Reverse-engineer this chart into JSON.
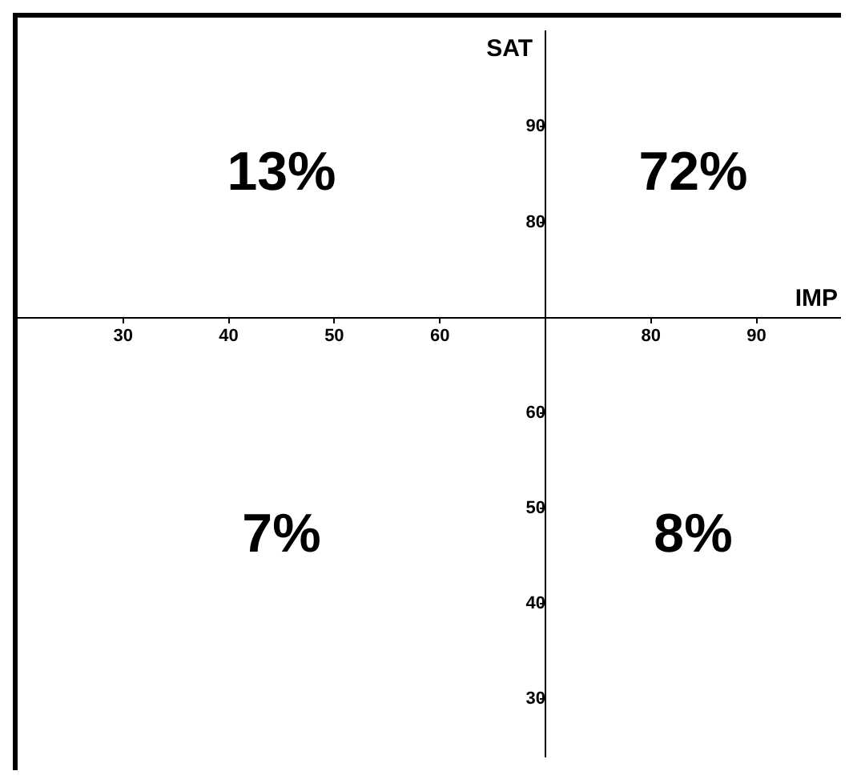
{
  "chart_data": {
    "type": "scatter",
    "xlabel": "IMP",
    "ylabel": "SAT",
    "xlim": [
      20,
      98
    ],
    "ylim": [
      24,
      100
    ],
    "xticks": [
      30,
      40,
      50,
      60,
      80,
      90
    ],
    "yticks": [
      30,
      40,
      50,
      60,
      80,
      90
    ],
    "annotations": [
      "13%",
      "72%",
      "7%",
      "8%"
    ]
  }
}
